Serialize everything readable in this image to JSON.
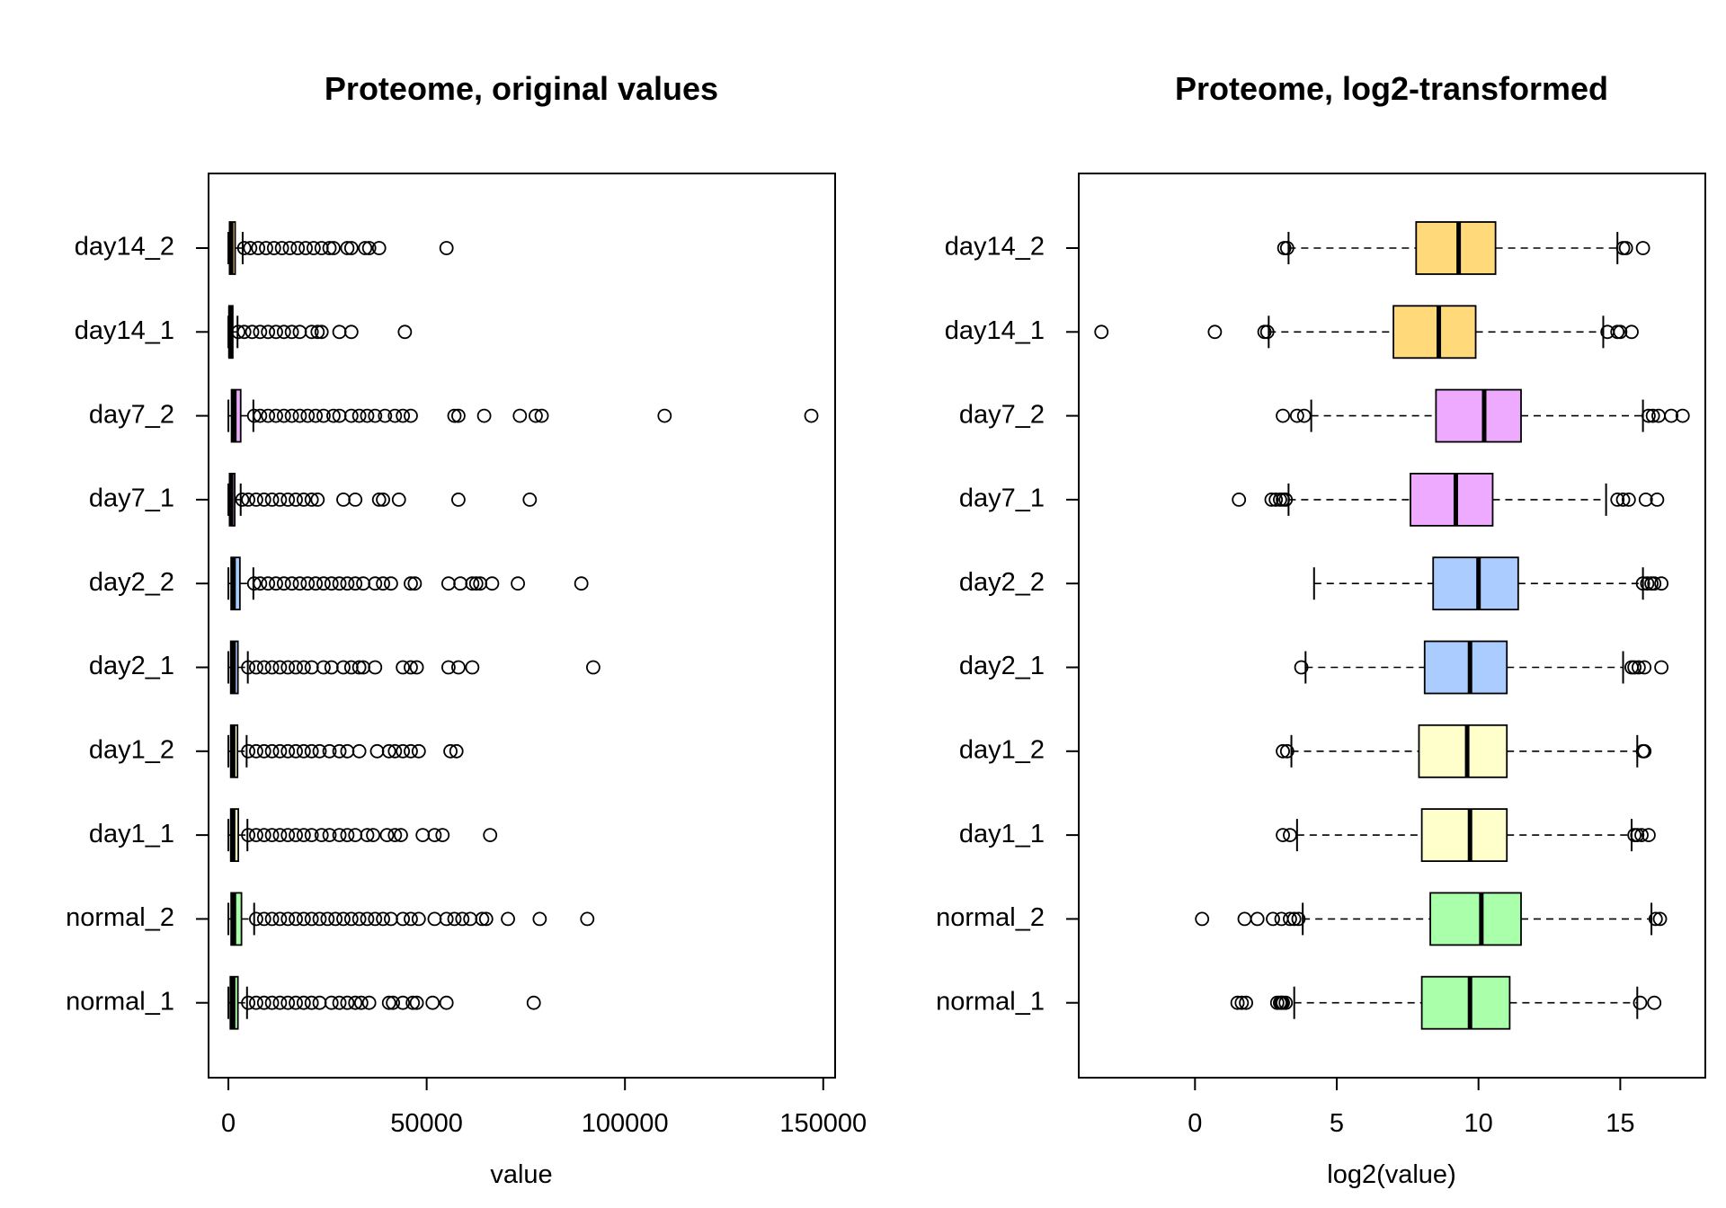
{
  "chart_data": [
    {
      "type": "boxplot",
      "orientation": "horizontal",
      "title": "Proteome, original values",
      "xlabel": "value",
      "ylabel": "",
      "xlim": [
        -5000,
        153000
      ],
      "xticks": [
        0,
        50000,
        100000,
        150000
      ],
      "xtick_labels": [
        "0",
        "50000",
        "100000",
        "150000"
      ],
      "categories": [
        "normal_1",
        "normal_2",
        "day1_1",
        "day1_2",
        "day2_1",
        "day2_2",
        "day7_1",
        "day7_2",
        "day14_1",
        "day14_2"
      ],
      "colors": [
        "#aaffaa",
        "#aaffaa",
        "#ffffcc",
        "#ffffcc",
        "#aaccff",
        "#aaccff",
        "#eeaaff",
        "#eeaaff",
        "#ffd97a",
        "#ffd97a"
      ],
      "series": [
        {
          "q1": 500,
          "median": 1200,
          "q3": 2400,
          "whisker_low": 0,
          "whisker_high": 4700,
          "outliers": [
            5000,
            7000,
            9000,
            11000,
            13000,
            15000,
            17000,
            19000,
            21000,
            23000,
            26000,
            28000,
            30000,
            32000,
            33500,
            35500,
            40500,
            41500,
            44000,
            46500,
            47500,
            51500,
            55000,
            77000
          ]
        },
        {
          "q1": 700,
          "median": 1400,
          "q3": 3300,
          "whisker_low": 0,
          "whisker_high": 6500,
          "outliers": [
            7000,
            9000,
            11000,
            13000,
            15000,
            17000,
            19000,
            21000,
            23000,
            25000,
            27000,
            29000,
            31000,
            33000,
            35000,
            37000,
            39000,
            41000,
            44000,
            46000,
            48000,
            52000,
            55000,
            57000,
            59000,
            61000,
            64000,
            65000,
            70500,
            78500,
            90500
          ]
        },
        {
          "q1": 600,
          "median": 1200,
          "q3": 2500,
          "whisker_low": 0,
          "whisker_high": 4800,
          "outliers": [
            5000,
            7000,
            9000,
            11000,
            13000,
            15000,
            17000,
            19000,
            21000,
            23500,
            25500,
            28000,
            30000,
            32000,
            35000,
            36500,
            40000,
            42000,
            43500,
            49000,
            52000,
            54000,
            66000
          ]
        },
        {
          "q1": 600,
          "median": 1200,
          "q3": 2300,
          "whisker_low": 0,
          "whisker_high": 4600,
          "outliers": [
            5000,
            7000,
            9000,
            11000,
            13000,
            15000,
            17000,
            19000,
            21000,
            23000,
            25500,
            28000,
            30000,
            33000,
            37500,
            40500,
            42000,
            44000,
            46000,
            48000,
            56000,
            57500
          ]
        },
        {
          "q1": 600,
          "median": 1300,
          "q3": 2400,
          "whisker_low": 0,
          "whisker_high": 4900,
          "outliers": [
            5000,
            7000,
            9000,
            11000,
            13000,
            15000,
            17000,
            19000,
            21000,
            24000,
            26000,
            29000,
            31000,
            33000,
            34000,
            37000,
            44000,
            46000,
            47500,
            55500,
            58000,
            61500,
            92000
          ]
        },
        {
          "q1": 700,
          "median": 1300,
          "q3": 2900,
          "whisker_low": 0,
          "whisker_high": 6300,
          "outliers": [
            6500,
            8000,
            10000,
            12000,
            14000,
            16000,
            18000,
            20000,
            22000,
            24000,
            26000,
            28000,
            30000,
            32000,
            34000,
            37000,
            39000,
            41000,
            46000,
            47000,
            55500,
            58500,
            61500,
            62500,
            63500,
            66500,
            73000,
            89000
          ]
        },
        {
          "q1": 300,
          "median": 700,
          "q3": 1600,
          "whisker_low": 0,
          "whisker_high": 3100,
          "outliers": [
            3500,
            5000,
            7000,
            9000,
            11000,
            13000,
            15000,
            17000,
            19000,
            21000,
            22500,
            29000,
            32000,
            38000,
            39000,
            43000,
            58000,
            76000
          ]
        },
        {
          "q1": 800,
          "median": 1500,
          "q3": 3100,
          "whisker_low": 0,
          "whisker_high": 6300,
          "outliers": [
            6500,
            8000,
            10000,
            12000,
            14000,
            16000,
            18000,
            20000,
            22000,
            24000,
            26500,
            28000,
            31000,
            33000,
            35000,
            37000,
            39500,
            42000,
            44000,
            46000,
            57000,
            58000,
            64500,
            73500,
            77500,
            79000,
            110000,
            147000
          ]
        },
        {
          "q1": 200,
          "median": 500,
          "q3": 1100,
          "whisker_low": 0,
          "whisker_high": 2300,
          "outliers": [
            2500,
            4000,
            6000,
            8000,
            10000,
            12000,
            14000,
            16000,
            18000,
            21000,
            22500,
            23500,
            28000,
            31000,
            44500
          ]
        },
        {
          "q1": 300,
          "median": 700,
          "q3": 1700,
          "whisker_low": 0,
          "whisker_high": 3600,
          "outliers": [
            4000,
            5500,
            7500,
            9500,
            11500,
            13500,
            15500,
            17500,
            19500,
            21500,
            23500,
            25500,
            26500,
            30000,
            31000,
            34500,
            35500,
            38000,
            55000
          ]
        }
      ]
    },
    {
      "type": "boxplot",
      "orientation": "horizontal",
      "title": "Proteome, log2-transformed",
      "xlabel": "log2(value)",
      "ylabel": "",
      "xlim": [
        -4.1,
        18.0
      ],
      "xticks": [
        0,
        5,
        10,
        15
      ],
      "xtick_labels": [
        "0",
        "5",
        "10",
        "15"
      ],
      "categories": [
        "normal_1",
        "normal_2",
        "day1_1",
        "day1_2",
        "day2_1",
        "day2_2",
        "day7_1",
        "day7_2",
        "day14_1",
        "day14_2"
      ],
      "colors": [
        "#aaffaa",
        "#aaffaa",
        "#ffffcc",
        "#ffffcc",
        "#aaccff",
        "#aaccff",
        "#eeaaff",
        "#eeaaff",
        "#ffd97a",
        "#ffd97a"
      ],
      "series": [
        {
          "q1": 8.0,
          "median": 9.7,
          "q3": 11.1,
          "whisker_low": 3.5,
          "whisker_high": 15.6,
          "outliers": [
            1.5,
            1.65,
            1.8,
            2.9,
            3.0,
            3.05,
            3.1,
            3.2,
            15.7,
            16.2
          ]
        },
        {
          "q1": 8.3,
          "median": 10.1,
          "q3": 11.5,
          "whisker_low": 3.8,
          "whisker_high": 16.1,
          "outliers": [
            0.25,
            1.75,
            2.2,
            2.75,
            3.05,
            3.35,
            3.5,
            3.65,
            16.25,
            16.4
          ]
        },
        {
          "q1": 8.0,
          "median": 9.7,
          "q3": 11.0,
          "whisker_low": 3.6,
          "whisker_high": 15.4,
          "outliers": [
            3.1,
            3.35,
            15.5,
            15.6,
            15.75,
            16.0
          ]
        },
        {
          "q1": 7.9,
          "median": 9.6,
          "q3": 11.0,
          "whisker_low": 3.4,
          "whisker_high": 15.6,
          "outliers": [
            3.1,
            3.25,
            15.8,
            15.85
          ]
        },
        {
          "q1": 8.1,
          "median": 9.7,
          "q3": 11.0,
          "whisker_low": 3.9,
          "whisker_high": 15.1,
          "outliers": [
            3.75,
            15.4,
            15.5,
            15.65,
            15.85,
            16.45
          ]
        },
        {
          "q1": 8.4,
          "median": 10.0,
          "q3": 11.4,
          "whisker_low": 4.2,
          "whisker_high": 15.8,
          "outliers": [
            15.8,
            15.95,
            16.1,
            16.2,
            16.45
          ]
        },
        {
          "q1": 7.6,
          "median": 9.2,
          "q3": 10.5,
          "whisker_low": 3.3,
          "whisker_high": 14.5,
          "outliers": [
            1.55,
            2.7,
            2.85,
            3.0,
            3.1,
            3.2,
            14.9,
            15.1,
            15.3,
            15.9,
            16.3
          ]
        },
        {
          "q1": 8.5,
          "median": 10.2,
          "q3": 11.5,
          "whisker_low": 4.1,
          "whisker_high": 15.8,
          "outliers": [
            3.1,
            3.6,
            3.85,
            16.0,
            16.15,
            16.35,
            16.8,
            17.2
          ]
        },
        {
          "q1": 7.0,
          "median": 8.6,
          "q3": 9.9,
          "whisker_low": 2.6,
          "whisker_high": 14.4,
          "outliers": [
            -3.3,
            0.7,
            2.45,
            2.55,
            14.55,
            14.9,
            15.0,
            15.4
          ]
        },
        {
          "q1": 7.8,
          "median": 9.3,
          "q3": 10.6,
          "whisker_low": 3.3,
          "whisker_high": 14.9,
          "outliers": [
            3.15,
            3.25,
            15.1,
            15.2,
            15.8
          ]
        }
      ]
    }
  ]
}
